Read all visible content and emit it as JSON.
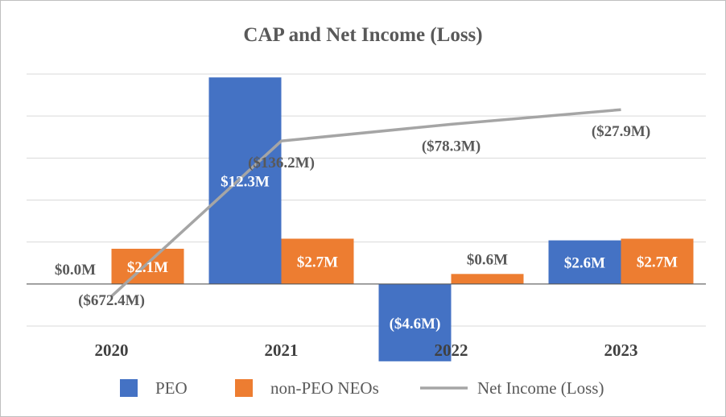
{
  "chart_data": {
    "type": "bar",
    "title": "CAP and Net Income (Loss)",
    "categories": [
      "2020",
      "2021",
      "2022",
      "2023"
    ],
    "series": [
      {
        "name": "PEO",
        "kind": "bar",
        "color": "#4472C4",
        "values": [
          0.0,
          12.3,
          -4.6,
          2.6
        ],
        "labels": [
          "$0.0M",
          "$12.3M",
          "($4.6M)",
          "$2.6M"
        ]
      },
      {
        "name": "non-PEO NEOs",
        "kind": "bar",
        "color": "#ED7D31",
        "values": [
          2.1,
          2.7,
          0.6,
          2.7
        ],
        "labels": [
          "$2.1M",
          "$2.7M",
          "$0.6M",
          "$2.7M"
        ]
      },
      {
        "name": "Net Income (Loss)",
        "kind": "line",
        "color": "#A5A5A5",
        "values": [
          -672.4,
          -136.2,
          -78.3,
          -27.9
        ],
        "labels": [
          "($672.4M)",
          "($136.2M)",
          "($78.3M)",
          "($27.9M)"
        ]
      }
    ],
    "ylim": [
      -2.5,
      12.5
    ],
    "y2lim": [
      -775,
      95
    ],
    "grid": true,
    "legend": "bottom"
  }
}
